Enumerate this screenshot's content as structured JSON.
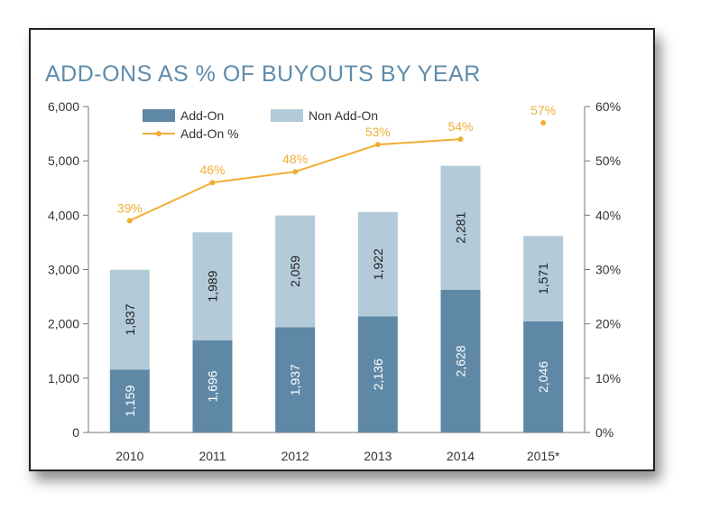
{
  "chart_data": {
    "type": "bar",
    "title": "ADD-ONS AS % OF BUYOUTS BY YEAR",
    "stacked": true,
    "categories": [
      "2010",
      "2011",
      "2012",
      "2013",
      "2014",
      "2015*"
    ],
    "series": [
      {
        "name": "Add-On",
        "values": [
          1159,
          1696,
          1937,
          2136,
          2628,
          2046
        ],
        "labels": [
          "1,159",
          "1,696",
          "1,937",
          "2,136",
          "2,628",
          "2,046"
        ],
        "color": "#5f88a6"
      },
      {
        "name": "Non Add-On",
        "values": [
          1837,
          1989,
          2059,
          1922,
          2281,
          1571
        ],
        "labels": [
          "1,837",
          "1,989",
          "2,059",
          "1,922",
          "2,281",
          "1,571"
        ],
        "color": "#b3cbd9"
      }
    ],
    "line_series": {
      "name": "Add-On %",
      "values": [
        39,
        46,
        48,
        53,
        54,
        57
      ],
      "labels": [
        "39%",
        "46%",
        "48%",
        "53%",
        "54%",
        "57%"
      ],
      "color": "#f0ae35",
      "connected_points": 5
    },
    "y_left": {
      "min": 0,
      "max": 6000,
      "ticks": [
        "0",
        "1,000",
        "2,000",
        "3,000",
        "4,000",
        "5,000",
        "6,000"
      ]
    },
    "y_right": {
      "min": 0,
      "max": 60,
      "ticks": [
        "0%",
        "10%",
        "20%",
        "30%",
        "40%",
        "50%",
        "60%"
      ]
    },
    "legend_position": "top-left",
    "grid": false,
    "colors": {
      "title": "#5f8cab",
      "axis": "#777777",
      "tick_text": "#333333",
      "bar_label": "#222222",
      "bar_label_light": "#ffffff"
    }
  }
}
